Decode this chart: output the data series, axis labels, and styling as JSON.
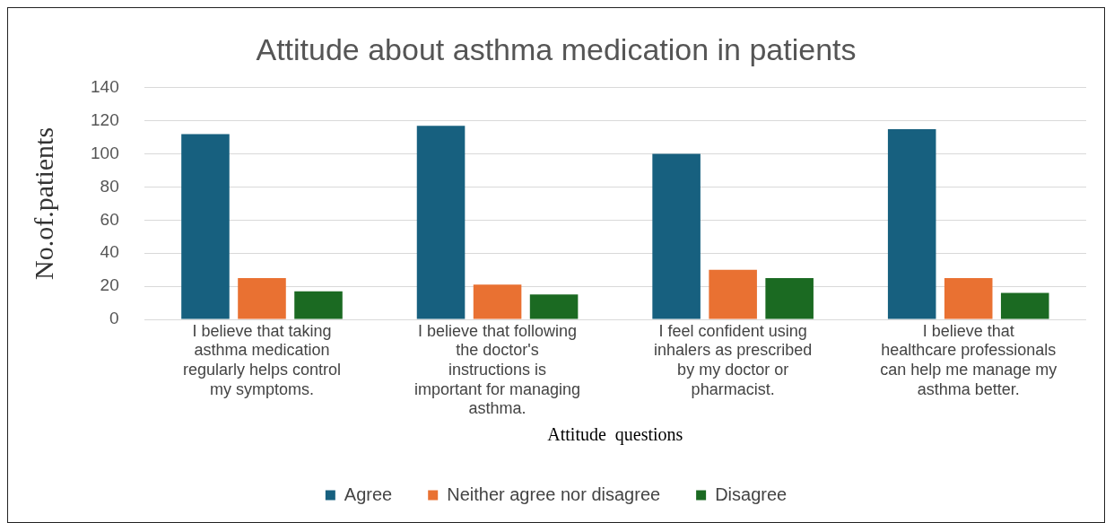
{
  "chart_data": {
    "type": "bar",
    "title": "Attitude about asthma medication in patients",
    "xlabel": "Attitude  questions",
    "ylabel": "No.of.patients",
    "categories": [
      "I believe that taking asthma medication regularly helps control my symptoms.",
      "I believe that following the doctor's instructions is important for managing asthma.",
      "I feel confident using inhalers as prescribed by my doctor or pharmacist.",
      "I believe that healthcare professionals can help me manage my asthma better."
    ],
    "series": [
      {
        "name": "Agree",
        "color": "#17607f",
        "values": [
          112,
          117,
          100,
          115
        ]
      },
      {
        "name": "Neither agree nor disagree",
        "color": "#e97132",
        "values": [
          25,
          21,
          30,
          25
        ]
      },
      {
        "name": "Disagree",
        "color": "#1b6a22",
        "values": [
          17,
          15,
          25,
          16
        ]
      }
    ],
    "ylim": [
      0,
      140
    ],
    "yticks": [
      0,
      20,
      40,
      60,
      80,
      100,
      120,
      140
    ],
    "grid": "y",
    "legend": "bottom"
  }
}
